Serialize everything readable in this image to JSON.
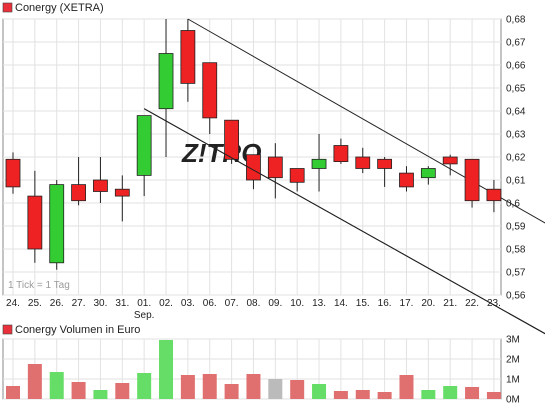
{
  "chart_data": [
    {
      "type": "candlestick",
      "title": "Conergy (XETRA)",
      "legend_color": "#e8313a",
      "note": "1 Tick = 1 Tag",
      "watermark": "Z!TRO",
      "up_color": "#33cc33",
      "down_color": "#ee2222",
      "grid": true,
      "ylim": [
        0.56,
        0.68
      ],
      "yticks": [
        0.56,
        0.57,
        0.58,
        0.59,
        0.6,
        0.61,
        0.62,
        0.63,
        0.64,
        0.65,
        0.66,
        0.67,
        0.68
      ],
      "ytick_labels": [
        "0,56",
        "0,57",
        "0,58",
        "0,59",
        "0,6",
        "0,61",
        "0,62",
        "0,63",
        "0,64",
        "0,65",
        "0,66",
        "0,67",
        "0,68"
      ],
      "categories": [
        "24.",
        "25.",
        "26.",
        "27.",
        "30.",
        "31.",
        "01.",
        "02.",
        "03.",
        "06.",
        "07.",
        "08.",
        "09.",
        "10.",
        "13.",
        "14.",
        "15.",
        "16.",
        "17.",
        "20.",
        "21.",
        "22.",
        "23."
      ],
      "month_label": {
        "text": "Sep.",
        "under_index": 6
      },
      "candles": [
        {
          "open": 0.619,
          "high": 0.622,
          "low": 0.604,
          "close": 0.607
        },
        {
          "open": 0.603,
          "high": 0.614,
          "low": 0.574,
          "close": 0.58
        },
        {
          "open": 0.574,
          "high": 0.61,
          "low": 0.571,
          "close": 0.608
        },
        {
          "open": 0.608,
          "high": 0.62,
          "low": 0.599,
          "close": 0.601
        },
        {
          "open": 0.61,
          "high": 0.62,
          "low": 0.6,
          "close": 0.605
        },
        {
          "open": 0.606,
          "high": 0.612,
          "low": 0.592,
          "close": 0.603
        },
        {
          "open": 0.612,
          "high": 0.638,
          "low": 0.603,
          "close": 0.638
        },
        {
          "open": 0.641,
          "high": 0.68,
          "low": 0.62,
          "close": 0.665
        },
        {
          "open": 0.675,
          "high": 0.68,
          "low": 0.644,
          "close": 0.652
        },
        {
          "open": 0.661,
          "high": 0.661,
          "low": 0.63,
          "close": 0.637
        },
        {
          "open": 0.636,
          "high": 0.636,
          "low": 0.617,
          "close": 0.619
        },
        {
          "open": 0.621,
          "high": 0.621,
          "low": 0.606,
          "close": 0.61
        },
        {
          "open": 0.62,
          "high": 0.626,
          "low": 0.602,
          "close": 0.611
        },
        {
          "open": 0.615,
          "high": 0.615,
          "low": 0.605,
          "close": 0.609
        },
        {
          "open": 0.615,
          "high": 0.63,
          "low": 0.605,
          "close": 0.619
        },
        {
          "open": 0.625,
          "high": 0.628,
          "low": 0.617,
          "close": 0.618
        },
        {
          "open": 0.62,
          "high": 0.624,
          "low": 0.613,
          "close": 0.615
        },
        {
          "open": 0.619,
          "high": 0.62,
          "low": 0.607,
          "close": 0.615
        },
        {
          "open": 0.613,
          "high": 0.616,
          "low": 0.605,
          "close": 0.607
        },
        {
          "open": 0.611,
          "high": 0.616,
          "low": 0.608,
          "close": 0.615
        },
        {
          "open": 0.62,
          "high": 0.621,
          "low": 0.612,
          "close": 0.617
        },
        {
          "open": 0.619,
          "high": 0.619,
          "low": 0.598,
          "close": 0.601
        },
        {
          "open": 0.606,
          "high": 0.61,
          "low": 0.596,
          "close": 0.601
        }
      ],
      "trend_channel": {
        "upper": {
          "from": {
            "index": 8,
            "y": 0.68
          },
          "to": {
            "index": 25.5,
            "y": 0.585
          }
        },
        "lower": {
          "from": {
            "index": 6,
            "y": 0.641
          },
          "to": {
            "index": 25.5,
            "y": 0.537
          }
        }
      }
    },
    {
      "type": "bar",
      "title": "Conergy Volumen in Euro",
      "legend_color": "#e8313a",
      "ylim": [
        0,
        3000000
      ],
      "yticks": [
        0,
        1000000,
        2000000,
        3000000
      ],
      "ytick_labels": [
        "0M",
        "1M",
        "2M",
        "3M"
      ],
      "categories": [
        "24.",
        "25.",
        "26.",
        "27.",
        "30.",
        "31.",
        "01.",
        "02.",
        "03.",
        "06.",
        "07.",
        "08.",
        "09.",
        "10.",
        "13.",
        "14.",
        "15.",
        "16.",
        "17.",
        "20.",
        "21.",
        "22.",
        "23."
      ],
      "values": [
        650000,
        1750000,
        1350000,
        850000,
        450000,
        800000,
        1300000,
        2950000,
        1200000,
        1250000,
        750000,
        1250000,
        1000000,
        950000,
        750000,
        400000,
        450000,
        350000,
        1200000,
        450000,
        650000,
        600000,
        350000
      ],
      "bar_colors": [
        "#e07070",
        "#e07070",
        "#66dd66",
        "#e07070",
        "#66dd66",
        "#e07070",
        "#66dd66",
        "#66dd66",
        "#e07070",
        "#e07070",
        "#e07070",
        "#e07070",
        "#bbbbbb",
        "#e07070",
        "#66dd66",
        "#e07070",
        "#e07070",
        "#e07070",
        "#e07070",
        "#66dd66",
        "#66dd66",
        "#e07070",
        "#e07070"
      ]
    }
  ]
}
